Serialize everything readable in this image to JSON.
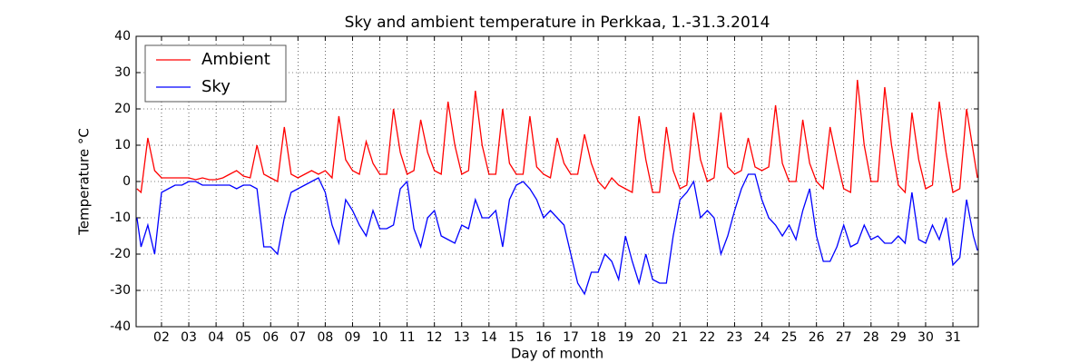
{
  "chart_data": {
    "type": "line",
    "title": "Sky and ambient temperature in Perkkaa, 1.-31.3.2014",
    "xlabel": "Day of month",
    "ylabel": "Temperature °C",
    "x": [
      1.1,
      1.25,
      1.5,
      1.75,
      2,
      2.25,
      2.5,
      2.75,
      3,
      3.25,
      3.5,
      3.75,
      4,
      4.25,
      4.5,
      4.75,
      5,
      5.25,
      5.5,
      5.75,
      6,
      6.25,
      6.5,
      6.75,
      7,
      7.25,
      7.5,
      7.75,
      8,
      8.25,
      8.5,
      8.75,
      9,
      9.25,
      9.5,
      9.75,
      10,
      10.25,
      10.5,
      10.75,
      11,
      11.25,
      11.5,
      11.75,
      12,
      12.25,
      12.5,
      12.75,
      13,
      13.25,
      13.5,
      13.75,
      14,
      14.25,
      14.5,
      14.75,
      15,
      15.25,
      15.5,
      15.75,
      16,
      16.25,
      16.5,
      16.75,
      17,
      17.25,
      17.5,
      17.75,
      18,
      18.25,
      18.5,
      18.75,
      19,
      19.25,
      19.5,
      19.75,
      20,
      20.25,
      20.5,
      20.75,
      21,
      21.25,
      21.5,
      21.75,
      22,
      22.25,
      22.5,
      22.75,
      23,
      23.25,
      23.5,
      23.75,
      24,
      24.25,
      24.5,
      24.75,
      25,
      25.25,
      25.5,
      25.75,
      26,
      26.25,
      26.5,
      26.75,
      27,
      27.25,
      27.5,
      27.75,
      28,
      28.25,
      28.5,
      28.75,
      29,
      29.25,
      29.5,
      29.75,
      30,
      30.25,
      30.5,
      30.75,
      31,
      31.25,
      31.5,
      31.75,
      31.9
    ],
    "series": [
      {
        "name": "Ambient",
        "color": "#ff0000",
        "values": [
          -2,
          -3,
          12,
          3,
          1,
          1,
          1,
          1,
          1,
          0.5,
          1,
          0.5,
          0.5,
          1,
          2,
          3,
          1.5,
          1,
          10,
          2,
          1,
          0,
          15,
          2,
          1,
          2,
          3,
          2,
          3,
          1,
          18,
          6,
          3,
          2,
          11,
          5,
          2,
          2,
          20,
          8,
          2,
          3,
          17,
          8,
          3,
          2,
          22,
          10,
          2,
          3,
          25,
          10,
          2,
          2,
          20,
          5,
          2,
          2,
          18,
          4,
          2,
          1,
          12,
          5,
          2,
          2,
          13,
          5,
          0,
          -2,
          1,
          -1,
          -2,
          -3,
          18,
          6,
          -3,
          -3,
          15,
          3,
          -2,
          -1,
          19,
          6,
          0,
          1,
          19,
          4,
          2,
          3,
          12,
          4,
          3,
          4,
          21,
          5,
          0,
          0,
          17,
          5,
          0,
          -2,
          15,
          6,
          -2,
          -3,
          28,
          10,
          0,
          0,
          26,
          10,
          -1,
          -3,
          19,
          6,
          -2,
          -1,
          22,
          8,
          -3,
          -2,
          20,
          8,
          1
        ]
      },
      {
        "name": "Sky",
        "color": "#0000ff",
        "values": [
          -10,
          -18,
          -12,
          -20,
          -3,
          -2,
          -1,
          -1,
          0,
          0,
          -1,
          -1,
          -1,
          -1,
          -1,
          -2,
          -1,
          -1,
          -2,
          -18,
          -18,
          -20,
          -10,
          -3,
          -2,
          -1,
          0,
          1,
          -3,
          -12,
          -17,
          -5,
          -8,
          -12,
          -15,
          -8,
          -13,
          -13,
          -12,
          -2,
          0,
          -13,
          -18,
          -10,
          -8,
          -15,
          -16,
          -17,
          -12,
          -13,
          -5,
          -10,
          -10,
          -8,
          -18,
          -5,
          -1,
          0,
          -2,
          -5,
          -10,
          -8,
          -10,
          -12,
          -20,
          -28,
          -31,
          -25,
          -25,
          -20,
          -22,
          -27,
          -15,
          -22,
          -28,
          -20,
          -27,
          -28,
          -28,
          -15,
          -5,
          -3,
          0,
          -10,
          -8,
          -10,
          -20,
          -15,
          -8,
          -2,
          2,
          2,
          -5,
          -10,
          -12,
          -15,
          -12,
          -16,
          -8,
          -2,
          -15,
          -22,
          -22,
          -18,
          -12,
          -18,
          -17,
          -12,
          -16,
          -15,
          -17,
          -17,
          -15,
          -17,
          -3,
          -16,
          -17,
          -12,
          -16,
          -10,
          -23,
          -21,
          -5,
          -15,
          -19
        ]
      }
    ],
    "xlim": [
      1.07,
      31.93
    ],
    "xticks": [
      {
        "value": 2,
        "label": "02"
      },
      {
        "value": 3,
        "label": "03"
      },
      {
        "value": 4,
        "label": "04"
      },
      {
        "value": 5,
        "label": "05"
      },
      {
        "value": 6,
        "label": "06"
      },
      {
        "value": 7,
        "label": "07"
      },
      {
        "value": 8,
        "label": "08"
      },
      {
        "value": 9,
        "label": "09"
      },
      10,
      11,
      12,
      13,
      14,
      15,
      16,
      17,
      18,
      19,
      20,
      21,
      22,
      23,
      24,
      25,
      26,
      27,
      28,
      29,
      30,
      31
    ],
    "ylim": [
      -40,
      40
    ],
    "yticks": [
      -40,
      -30,
      -20,
      -10,
      0,
      10,
      20,
      30,
      40
    ],
    "grid": true,
    "legend": "upper left"
  }
}
